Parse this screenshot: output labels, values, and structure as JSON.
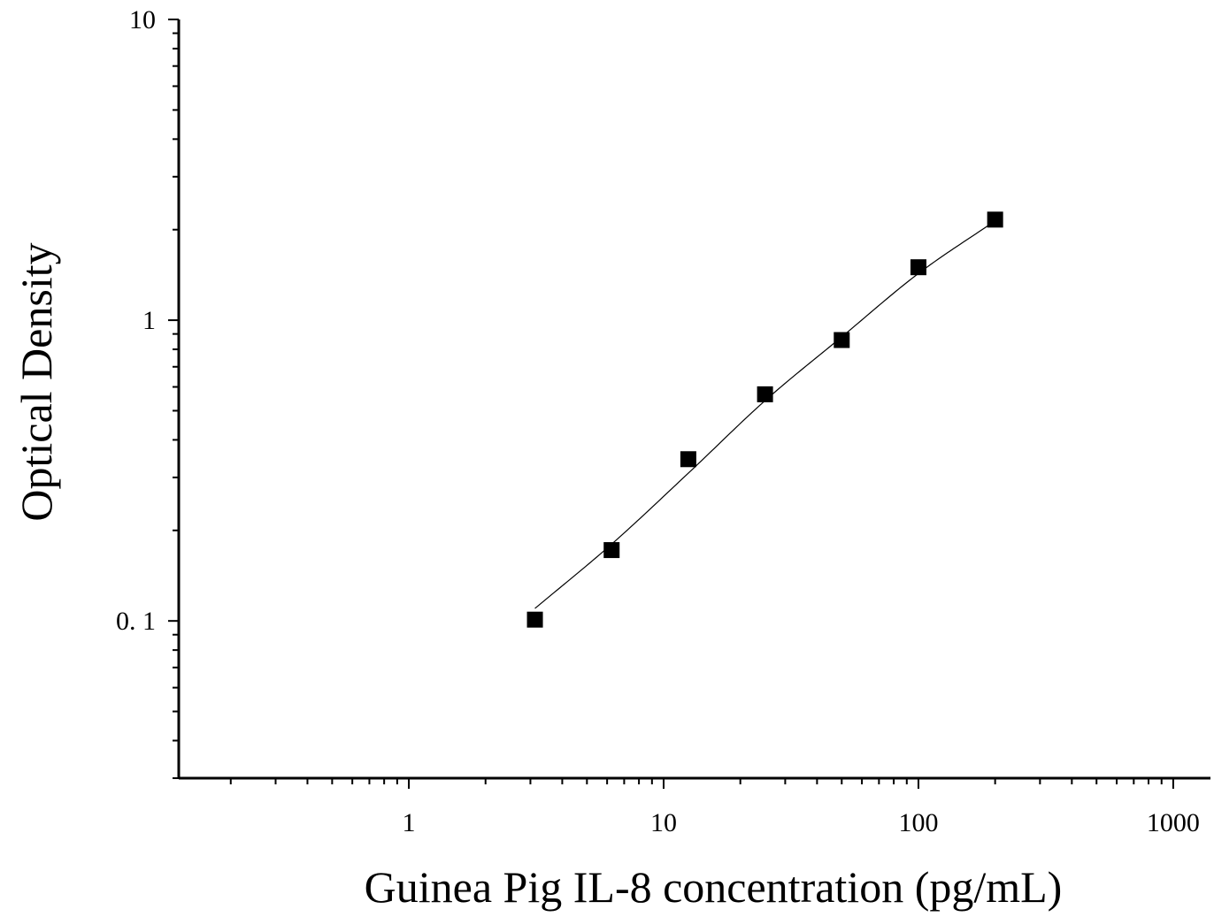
{
  "chart_data": {
    "type": "scatter",
    "title": "",
    "xlabel": "Guinea Pig IL-8 concentration (pg/mL)",
    "ylabel": "Optical Density",
    "x_scale": "log",
    "y_scale": "log",
    "xlim": [
      0.125,
      1400
    ],
    "ylim": [
      0.03,
      10
    ],
    "x_ticks": [
      {
        "value": 1,
        "label": "1"
      },
      {
        "value": 10,
        "label": "10"
      },
      {
        "value": 100,
        "label": "100"
      },
      {
        "value": 1000,
        "label": "1000"
      }
    ],
    "y_ticks": [
      {
        "value": 0.1,
        "label": "0. 1"
      },
      {
        "value": 1,
        "label": "1"
      },
      {
        "value": 10,
        "label": "10"
      }
    ],
    "grid": false,
    "legend": "none",
    "marker": "square",
    "marker_color": "#000000",
    "line_color": "#000000",
    "series": [
      {
        "x": [
          3.125,
          6.25,
          12.5,
          25,
          50,
          100,
          200
        ],
        "y": [
          0.101,
          0.172,
          0.345,
          0.567,
          0.859,
          1.5,
          2.16
        ]
      }
    ],
    "fit_curve": {
      "x": [
        3.125,
        6.25,
        12.5,
        25,
        50,
        100,
        200
      ],
      "y": [
        0.11,
        0.18,
        0.31,
        0.54,
        0.88,
        1.43,
        2.14
      ]
    }
  }
}
